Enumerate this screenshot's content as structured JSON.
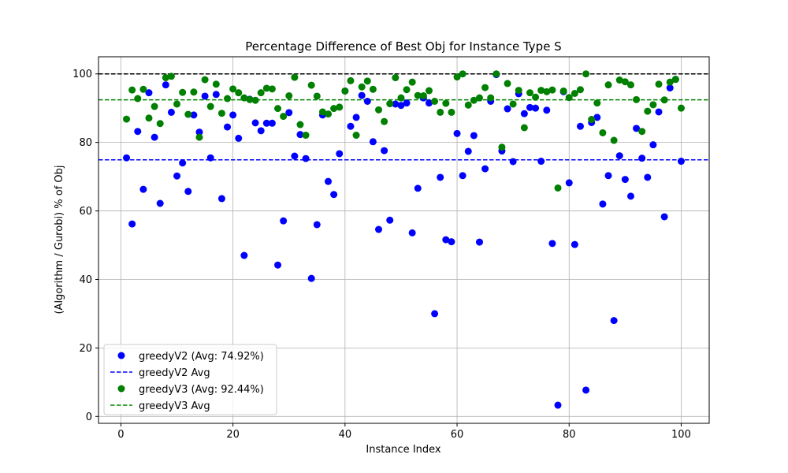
{
  "chart_data": {
    "type": "scatter",
    "title": "Percentage Difference of Best Obj for Instance Type S",
    "xlabel": "Instance Index",
    "ylabel": "(Algorithm / Gurobi) % of Obj",
    "xlim": [
      -4,
      105
    ],
    "ylim": [
      -2,
      105
    ],
    "xticks": [
      0,
      20,
      40,
      60,
      80,
      100
    ],
    "yticks": [
      0,
      20,
      40,
      60,
      80,
      100
    ],
    "grid": true,
    "legend_position": "lower-left",
    "reference_lines": [
      {
        "y": 100,
        "color": "#000000",
        "style": "dashed"
      },
      {
        "y": 74.92,
        "color": "#0000ff",
        "style": "dashed",
        "legend": "greedyV2 Avg"
      },
      {
        "y": 92.44,
        "color": "#008000",
        "style": "dashed",
        "legend": "greedyV3 Avg"
      }
    ],
    "series": [
      {
        "name": "greedyV2 (Avg: 74.92%)",
        "color": "#0000ff",
        "x": [
          1,
          2,
          3,
          4,
          5,
          6,
          7,
          8,
          9,
          10,
          11,
          12,
          13,
          14,
          15,
          16,
          17,
          18,
          19,
          20,
          21,
          22,
          23,
          24,
          25,
          26,
          27,
          28,
          29,
          30,
          31,
          32,
          33,
          34,
          35,
          36,
          37,
          38,
          39,
          40,
          41,
          42,
          43,
          44,
          45,
          46,
          47,
          48,
          49,
          50,
          51,
          52,
          53,
          54,
          55,
          56,
          57,
          58,
          59,
          60,
          61,
          62,
          63,
          64,
          65,
          66,
          67,
          68,
          69,
          70,
          71,
          72,
          73,
          74,
          75,
          76,
          77,
          78,
          79,
          80,
          81,
          82,
          83,
          84,
          85,
          86,
          87,
          88,
          89,
          90,
          91,
          92,
          93,
          94,
          95,
          96,
          97,
          98,
          99,
          100
        ],
        "y": [
          75.5,
          56.2,
          83.2,
          66.3,
          94.5,
          81.5,
          62.2,
          96.8,
          88.8,
          70.2,
          74.0,
          65.7,
          88.0,
          83.0,
          93.5,
          75.5,
          94.0,
          63.6,
          84.5,
          88.0,
          81.2,
          47.0,
          92.6,
          85.7,
          83.4,
          85.6,
          85.6,
          44.2,
          57.1,
          88.7,
          76.0,
          82.3,
          75.3,
          40.3,
          56.0,
          88.0,
          68.6,
          64.8,
          76.7,
          95.0,
          84.7,
          87.3,
          93.7,
          92.0,
          80.2,
          54.6,
          77.6,
          57.3,
          91.2,
          90.8,
          91.5,
          53.6,
          66.6,
          93.0,
          91.5,
          30.0,
          69.8,
          51.6,
          51.0,
          82.6,
          70.3,
          77.4,
          82.0,
          50.9,
          72.3,
          92.0,
          99.8,
          77.5,
          89.8,
          74.4,
          94.2,
          88.4,
          90.2,
          90.0,
          74.5,
          89.4,
          50.5,
          3.3,
          94.8,
          68.2,
          50.2,
          84.7,
          7.7,
          85.8,
          87.3,
          62.0,
          70.3,
          28.0,
          76.1,
          69.2,
          64.3,
          84.1,
          75.4,
          69.8,
          79.3,
          88.9,
          58.3,
          95.9,
          98.4,
          74.5
        ]
      },
      {
        "name": "greedyV3 (Avg: 92.44%)",
        "color": "#008000",
        "x": [
          1,
          2,
          3,
          4,
          5,
          6,
          7,
          8,
          9,
          10,
          11,
          12,
          13,
          14,
          15,
          16,
          17,
          18,
          19,
          20,
          21,
          22,
          23,
          24,
          25,
          26,
          27,
          28,
          29,
          30,
          31,
          32,
          33,
          34,
          35,
          36,
          37,
          38,
          39,
          40,
          41,
          42,
          43,
          44,
          45,
          46,
          47,
          48,
          49,
          50,
          51,
          52,
          53,
          54,
          55,
          56,
          57,
          58,
          59,
          60,
          61,
          62,
          63,
          64,
          65,
          66,
          67,
          68,
          69,
          70,
          71,
          72,
          73,
          74,
          75,
          76,
          77,
          78,
          79,
          80,
          81,
          82,
          83,
          84,
          85,
          86,
          87,
          88,
          89,
          90,
          91,
          92,
          93,
          94,
          95,
          96,
          97,
          98,
          99,
          100
        ],
        "y": [
          86.8,
          95.3,
          92.8,
          95.5,
          87.1,
          90.5,
          85.5,
          98.9,
          99.3,
          91.2,
          94.6,
          88.2,
          94.7,
          81.5,
          98.3,
          90.5,
          97.0,
          88.5,
          92.8,
          95.6,
          94.5,
          93.0,
          92.5,
          92.3,
          94.5,
          95.8,
          95.6,
          89.9,
          87.6,
          93.6,
          99.0,
          85.2,
          82.1,
          96.7,
          93.5,
          88.9,
          88.3,
          89.9,
          90.3,
          95.0,
          98.0,
          82.1,
          96.2,
          97.9,
          95.5,
          89.5,
          86.1,
          91.3,
          98.9,
          93.0,
          95.4,
          97.6,
          93.7,
          93.6,
          95.1,
          92.0,
          88.8,
          91.4,
          88.8,
          99.1,
          100.0,
          90.9,
          92.3,
          93.0,
          96.0,
          93.0,
          100.0,
          78.6,
          97.2,
          91.2,
          95.2,
          84.3,
          94.5,
          93.2,
          95.2,
          94.8,
          95.3,
          66.7,
          95.0,
          93.1,
          94.3,
          95.4,
          100.0,
          86.7,
          91.5,
          82.8,
          96.8,
          80.6,
          98.2,
          97.7,
          96.8,
          92.5,
          83.2,
          89.1,
          91.0,
          97.0,
          92.4,
          97.6,
          98.4,
          90.0
        ]
      }
    ],
    "legend": [
      {
        "label": "greedyV2 (Avg: 74.92%)",
        "kind": "marker",
        "color": "#0000ff"
      },
      {
        "label": "greedyV2 Avg",
        "kind": "dashed-line",
        "color": "#0000ff"
      },
      {
        "label": "greedyV3 (Avg: 92.44%)",
        "kind": "marker",
        "color": "#008000"
      },
      {
        "label": "greedyV3 Avg",
        "kind": "dashed-line",
        "color": "#008000"
      }
    ]
  }
}
